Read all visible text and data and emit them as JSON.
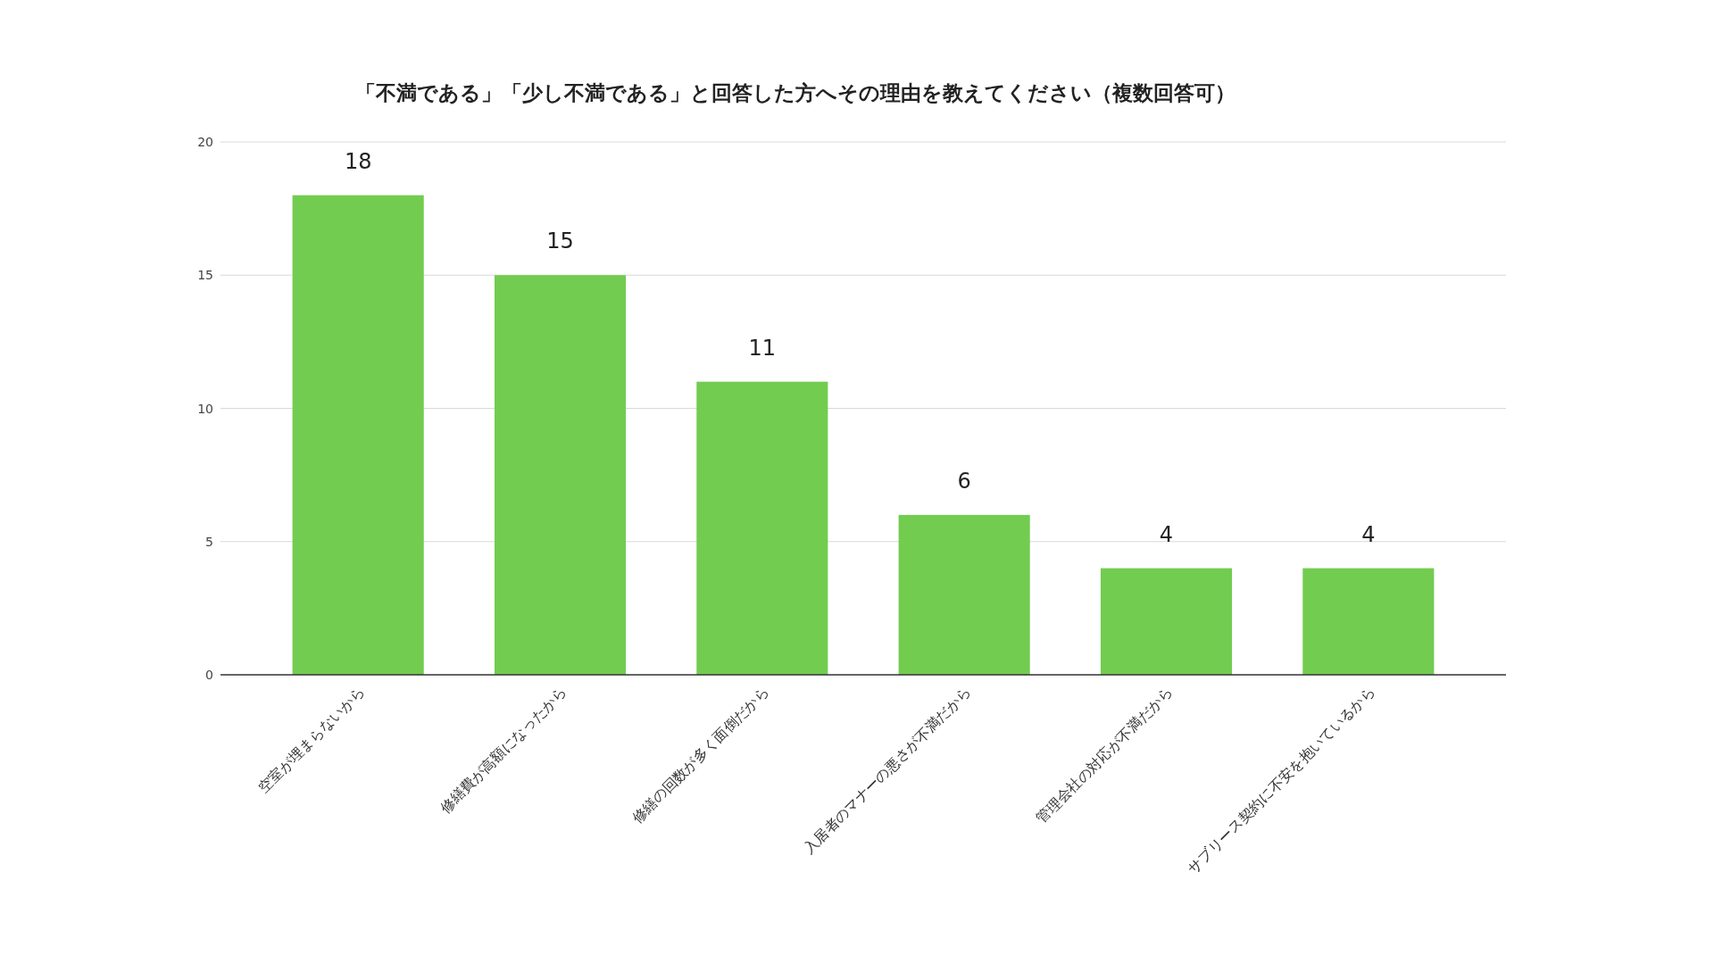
{
  "chart_data": {
    "type": "bar",
    "title": "「不満である」「少し不満である」と回答した方へその理由を教えてください（複数回答可）",
    "categories": [
      "空室が埋まらないから",
      "修繕費が高額になったから",
      "修繕の回数が多く面倒だから",
      "入居者のマナーの悪さが不満だから",
      "管理会社の対応が不満だから",
      "サブリース契約に不安を抱いているから"
    ],
    "values": [
      18,
      15,
      11,
      6,
      4,
      4
    ],
    "color": "#72cc50",
    "ylim": [
      0,
      20
    ],
    "yticks": [
      0,
      5,
      10,
      15,
      20
    ],
    "grid": "y",
    "data_labels": true
  }
}
